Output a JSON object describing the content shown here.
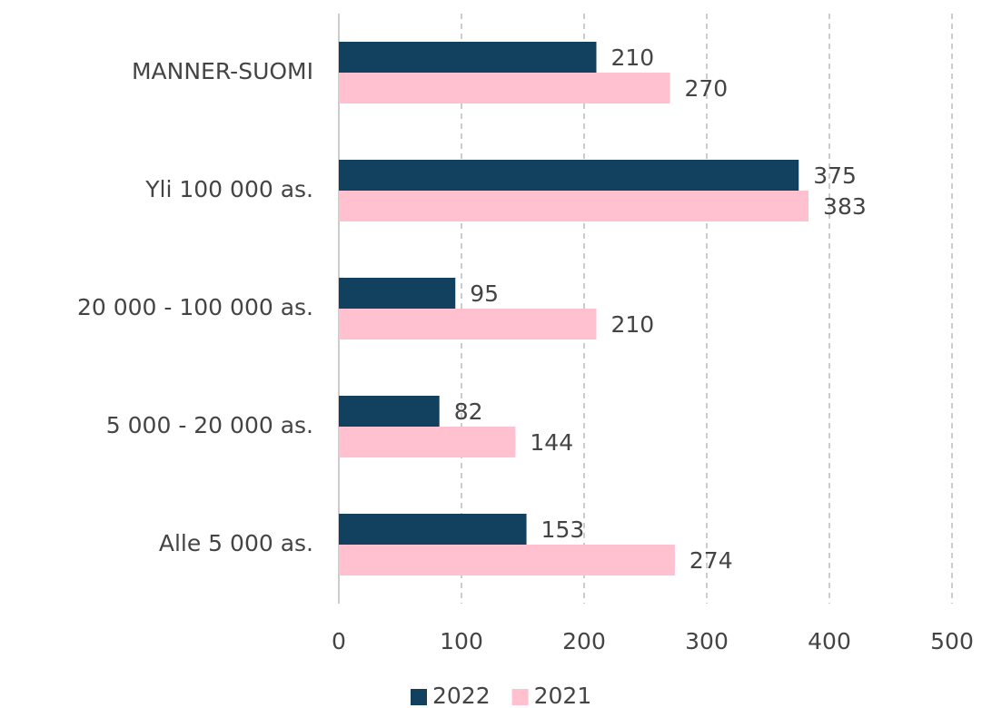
{
  "chart_data": {
    "type": "hbar",
    "categories": [
      "MANNER-SUOMI",
      "Yli 100 000 as.",
      "20 000 - 100 000 as.",
      "5 000 - 20 000 as.",
      "Alle 5 000 as."
    ],
    "series": [
      {
        "name": "2022",
        "color": "#12405f",
        "values": [
          210,
          375,
          95,
          82,
          153
        ]
      },
      {
        "name": "2021",
        "color": "#ffc0cf",
        "values": [
          270,
          383,
          210,
          144,
          274
        ]
      }
    ],
    "xlim": [
      0,
      500
    ],
    "xticks": [
      0,
      100,
      200,
      300,
      400,
      500
    ],
    "grid": true,
    "legend": "bottom"
  }
}
